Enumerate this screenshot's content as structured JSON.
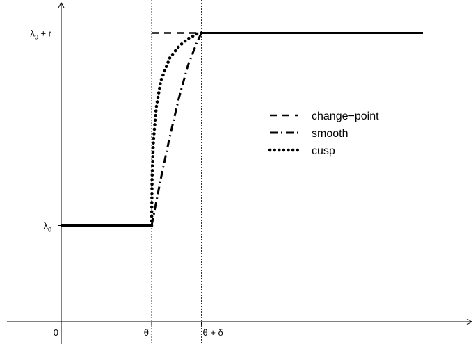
{
  "chart_data": {
    "type": "line",
    "title": "",
    "xlabel": "",
    "ylabel": "",
    "x_ticks": [
      {
        "value": 0,
        "label": "0"
      },
      {
        "value": 1,
        "label": "θ"
      },
      {
        "value": 1.55,
        "label": "θ + δ"
      }
    ],
    "y_ticks": [
      {
        "value": 1,
        "label": "λ₀",
        "base": "λ",
        "sub": "0",
        "suffix": ""
      },
      {
        "value": 3,
        "label": "λ₀ + r",
        "base": "λ",
        "sub": "0",
        "suffix": " + r"
      }
    ],
    "xlim": [
      -0.6,
      4.5
    ],
    "ylim": [
      0,
      3.4
    ],
    "grid": false,
    "reference_lines_x": [
      1,
      1.55
    ],
    "legend": {
      "position": "right-center",
      "entries": [
        {
          "label": "change−point",
          "style": "dashed"
        },
        {
          "label": "smooth",
          "style": "dashdot"
        },
        {
          "label": "cusp",
          "style": "dotted"
        }
      ]
    },
    "series": [
      {
        "style": "solid",
        "segments": [
          [
            [
              0,
              1
            ],
            [
              1,
              1
            ]
          ],
          [
            [
              1.55,
              3
            ],
            [
              4,
              3
            ]
          ]
        ]
      },
      {
        "name": "change−point",
        "style": "dashed",
        "x": [
          1,
          1.55
        ],
        "y": [
          3,
          3
        ]
      },
      {
        "name": "smooth",
        "style": "dashdot",
        "x": [
          1,
          1.1,
          1.2,
          1.3,
          1.4,
          1.5,
          1.55
        ],
        "y": [
          1,
          1.48,
          1.92,
          2.32,
          2.66,
          2.9,
          3
        ]
      },
      {
        "name": "cusp",
        "style": "dotted",
        "x": [
          1,
          1.005,
          1.02,
          1.05,
          1.1,
          1.2,
          1.3,
          1.4,
          1.5,
          1.55
        ],
        "y": [
          1,
          1.5,
          1.88,
          2.22,
          2.5,
          2.74,
          2.86,
          2.94,
          2.99,
          3
        ]
      }
    ]
  }
}
